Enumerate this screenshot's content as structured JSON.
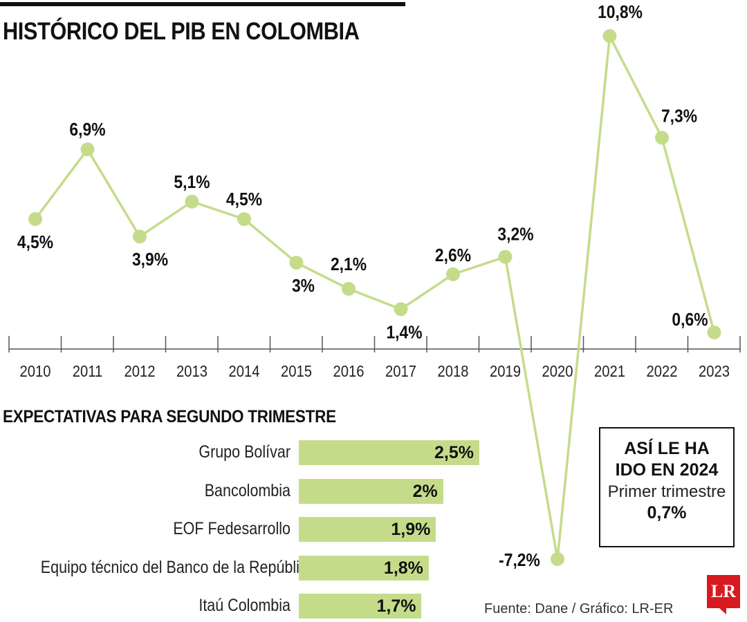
{
  "title": "HISTÓRICO DEL PIB EN COLOMBIA",
  "colors": {
    "line": "#c4dc8a",
    "bar": "#c4dc8a",
    "text": "#111111",
    "logo": "#d71920"
  },
  "chart_data": [
    {
      "type": "line",
      "title": "HISTÓRICO DEL PIB EN COLOMBIA",
      "x": [
        "2010",
        "2011",
        "2012",
        "2013",
        "2014",
        "2015",
        "2016",
        "2017",
        "2018",
        "2019",
        "2020",
        "2021",
        "2022",
        "2023"
      ],
      "y": [
        4.5,
        6.9,
        3.9,
        5.1,
        4.5,
        3.0,
        2.1,
        1.4,
        2.6,
        3.2,
        -7.2,
        10.8,
        7.3,
        0.6
      ],
      "data_labels": [
        "4,5%",
        "6,9%",
        "3,9%",
        "5,1%",
        "4,5%",
        "3%",
        "2,1%",
        "1,4%",
        "2,6%",
        "3,2%",
        "-7,2%",
        "10,8%",
        "7,3%",
        "0,6%"
      ],
      "xlabel": "",
      "ylabel": "",
      "grid": false,
      "legend": "none"
    },
    {
      "type": "bar",
      "orientation": "horizontal",
      "title": "EXPECTATIVAS PARA SEGUNDO TRIMESTRE",
      "categories": [
        "Grupo Bolívar",
        "Bancolombia",
        "EOF Fedesarrollo",
        "Equipo técnico del Banco de la República",
        "Itaú Colombia"
      ],
      "values": [
        2.5,
        2.0,
        1.9,
        1.8,
        1.7
      ],
      "data_labels": [
        "2,5%",
        "2%",
        "1,9%",
        "1,8%",
        "1,7%"
      ]
    }
  ],
  "info_box": {
    "heading_line1": "ASÍ LE HA",
    "heading_line2": "IDO EN 2024",
    "subtitle": "Primer trimestre",
    "value": "0,7%"
  },
  "source": "Fuente: Dane / Gráfico: LR-ER",
  "logo_text": "LR"
}
